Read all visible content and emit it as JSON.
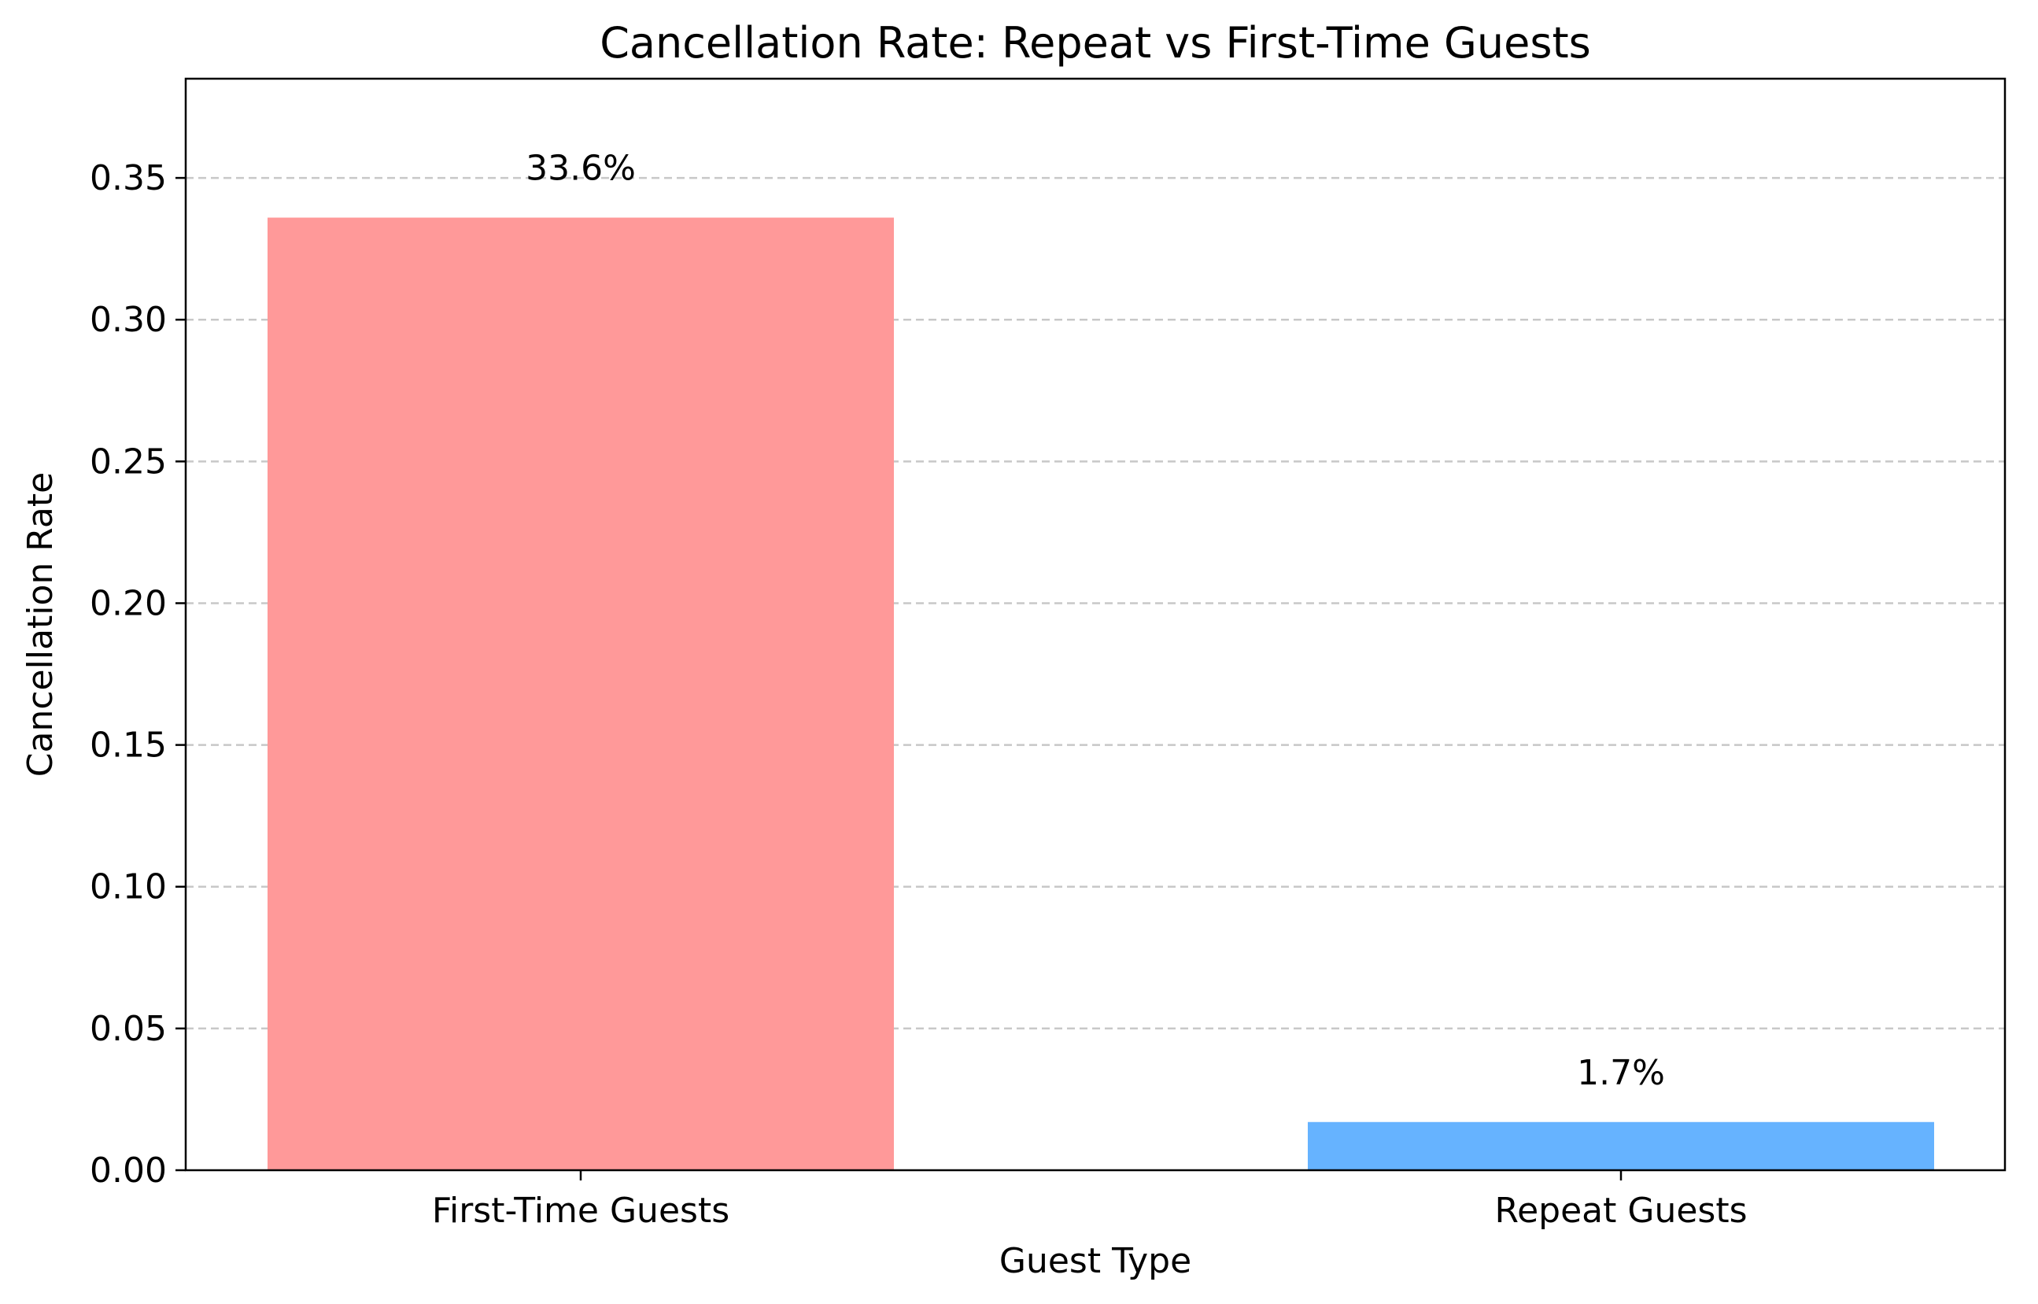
{
  "chart_data": {
    "type": "bar",
    "title": "Cancellation Rate: Repeat vs First-Time Guests",
    "xlabel": "Guest Type",
    "ylabel": "Cancellation Rate",
    "categories": [
      "First-Time Guests",
      "Repeat Guests"
    ],
    "values": [
      0.336,
      0.017
    ],
    "data_labels": [
      "33.6%",
      "1.7%"
    ],
    "colors": [
      "#ff9999",
      "#66b3ff"
    ],
    "ylim": [
      0,
      0.385
    ],
    "yticks": [
      0.0,
      0.05,
      0.1,
      0.15,
      0.2,
      0.25,
      0.3,
      0.35
    ],
    "ytick_labels": [
      "0.00",
      "0.05",
      "0.10",
      "0.15",
      "0.20",
      "0.25",
      "0.30",
      "0.35"
    ],
    "grid": {
      "axis": "y",
      "style": "dashed"
    },
    "legend": null
  }
}
